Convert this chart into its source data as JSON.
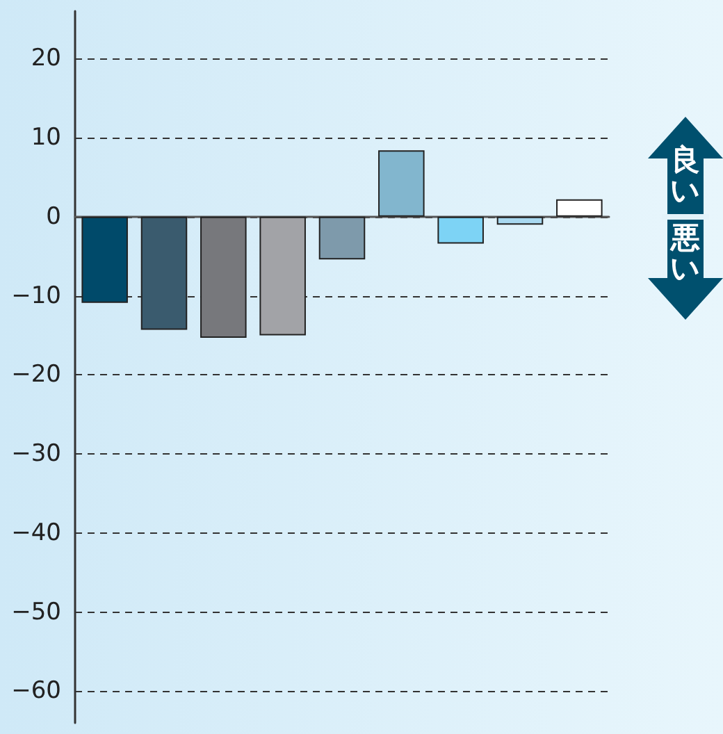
{
  "chart_data": {
    "type": "bar",
    "categories": [
      null,
      null,
      null,
      null,
      null,
      null,
      null,
      null,
      null
    ],
    "values": [
      -10.9,
      -14.3,
      -15.3,
      -15.0,
      -5.4,
      8.4,
      -3.4,
      -1.0,
      2.2
    ],
    "colors": [
      "#004a6a",
      "#3a5b6e",
      "#77787c",
      "#a2a3a7",
      "#7e9aab",
      "#82b6ce",
      "#7dd3f5",
      "#a8d8f0",
      "#ffffff"
    ],
    "ylim": [
      -64,
      26
    ],
    "yticks": [
      {
        "value": -60,
        "label": "−60"
      },
      {
        "value": -50,
        "label": "−50"
      },
      {
        "value": -40,
        "label": "−40"
      },
      {
        "value": -30,
        "label": "−30"
      },
      {
        "value": -20,
        "label": "−20"
      },
      {
        "value": -10,
        "label": "−10"
      },
      0,
      10,
      20
    ],
    "grid": "y",
    "annotations": [
      "良い",
      "悪い"
    ]
  }
}
